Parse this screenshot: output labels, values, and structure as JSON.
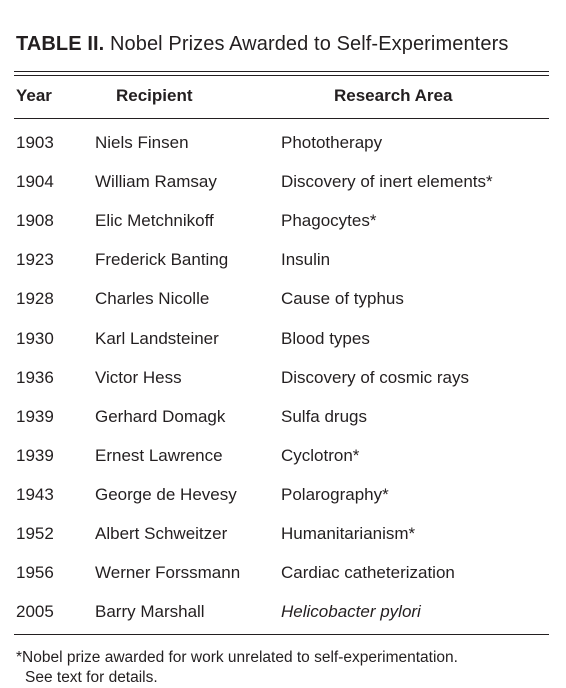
{
  "table": {
    "title_bold": "TABLE II.",
    "title_rest": " Nobel Prizes Awarded to Self-Experimenters",
    "headers": {
      "year": "Year",
      "recipient": "Recipient",
      "area": "Research Area"
    },
    "rows": [
      {
        "year": "1903",
        "recipient": "Niels Finsen",
        "area": "Phototherapy",
        "italic": false
      },
      {
        "year": "1904",
        "recipient": "William Ramsay",
        "area": "Discovery of inert elements*",
        "italic": false
      },
      {
        "year": "1908",
        "recipient": "Elic Metchnikoff",
        "area": "Phagocytes*",
        "italic": false
      },
      {
        "year": "1923",
        "recipient": "Frederick Banting",
        "area": "Insulin",
        "italic": false
      },
      {
        "year": "1928",
        "recipient": "Charles Nicolle",
        "area": "Cause of typhus",
        "italic": false
      },
      {
        "year": "1930",
        "recipient": "Karl Landsteiner",
        "area": "Blood types",
        "italic": false
      },
      {
        "year": "1936",
        "recipient": "Victor Hess",
        "area": "Discovery of cosmic rays",
        "italic": false
      },
      {
        "year": "1939",
        "recipient": "Gerhard Domagk",
        "area": "Sulfa drugs",
        "italic": false
      },
      {
        "year": "1939",
        "recipient": "Ernest Lawrence",
        "area": "Cyclotron*",
        "italic": false
      },
      {
        "year": "1943",
        "recipient": "George de Hevesy",
        "area": "Polarography*",
        "italic": false
      },
      {
        "year": "1952",
        "recipient": "Albert Schweitzer",
        "area": "Humanitarianism*",
        "italic": false
      },
      {
        "year": "1956",
        "recipient": "Werner Forssmann",
        "area": "Cardiac catheterization",
        "italic": false
      },
      {
        "year": "2005",
        "recipient": "Barry Marshall",
        "area": "Helicobacter pylori",
        "italic": true
      }
    ],
    "footnote_line1": "*Nobel prize awarded for work unrelated to self-experimentation.",
    "footnote_line2": "See text for details."
  }
}
